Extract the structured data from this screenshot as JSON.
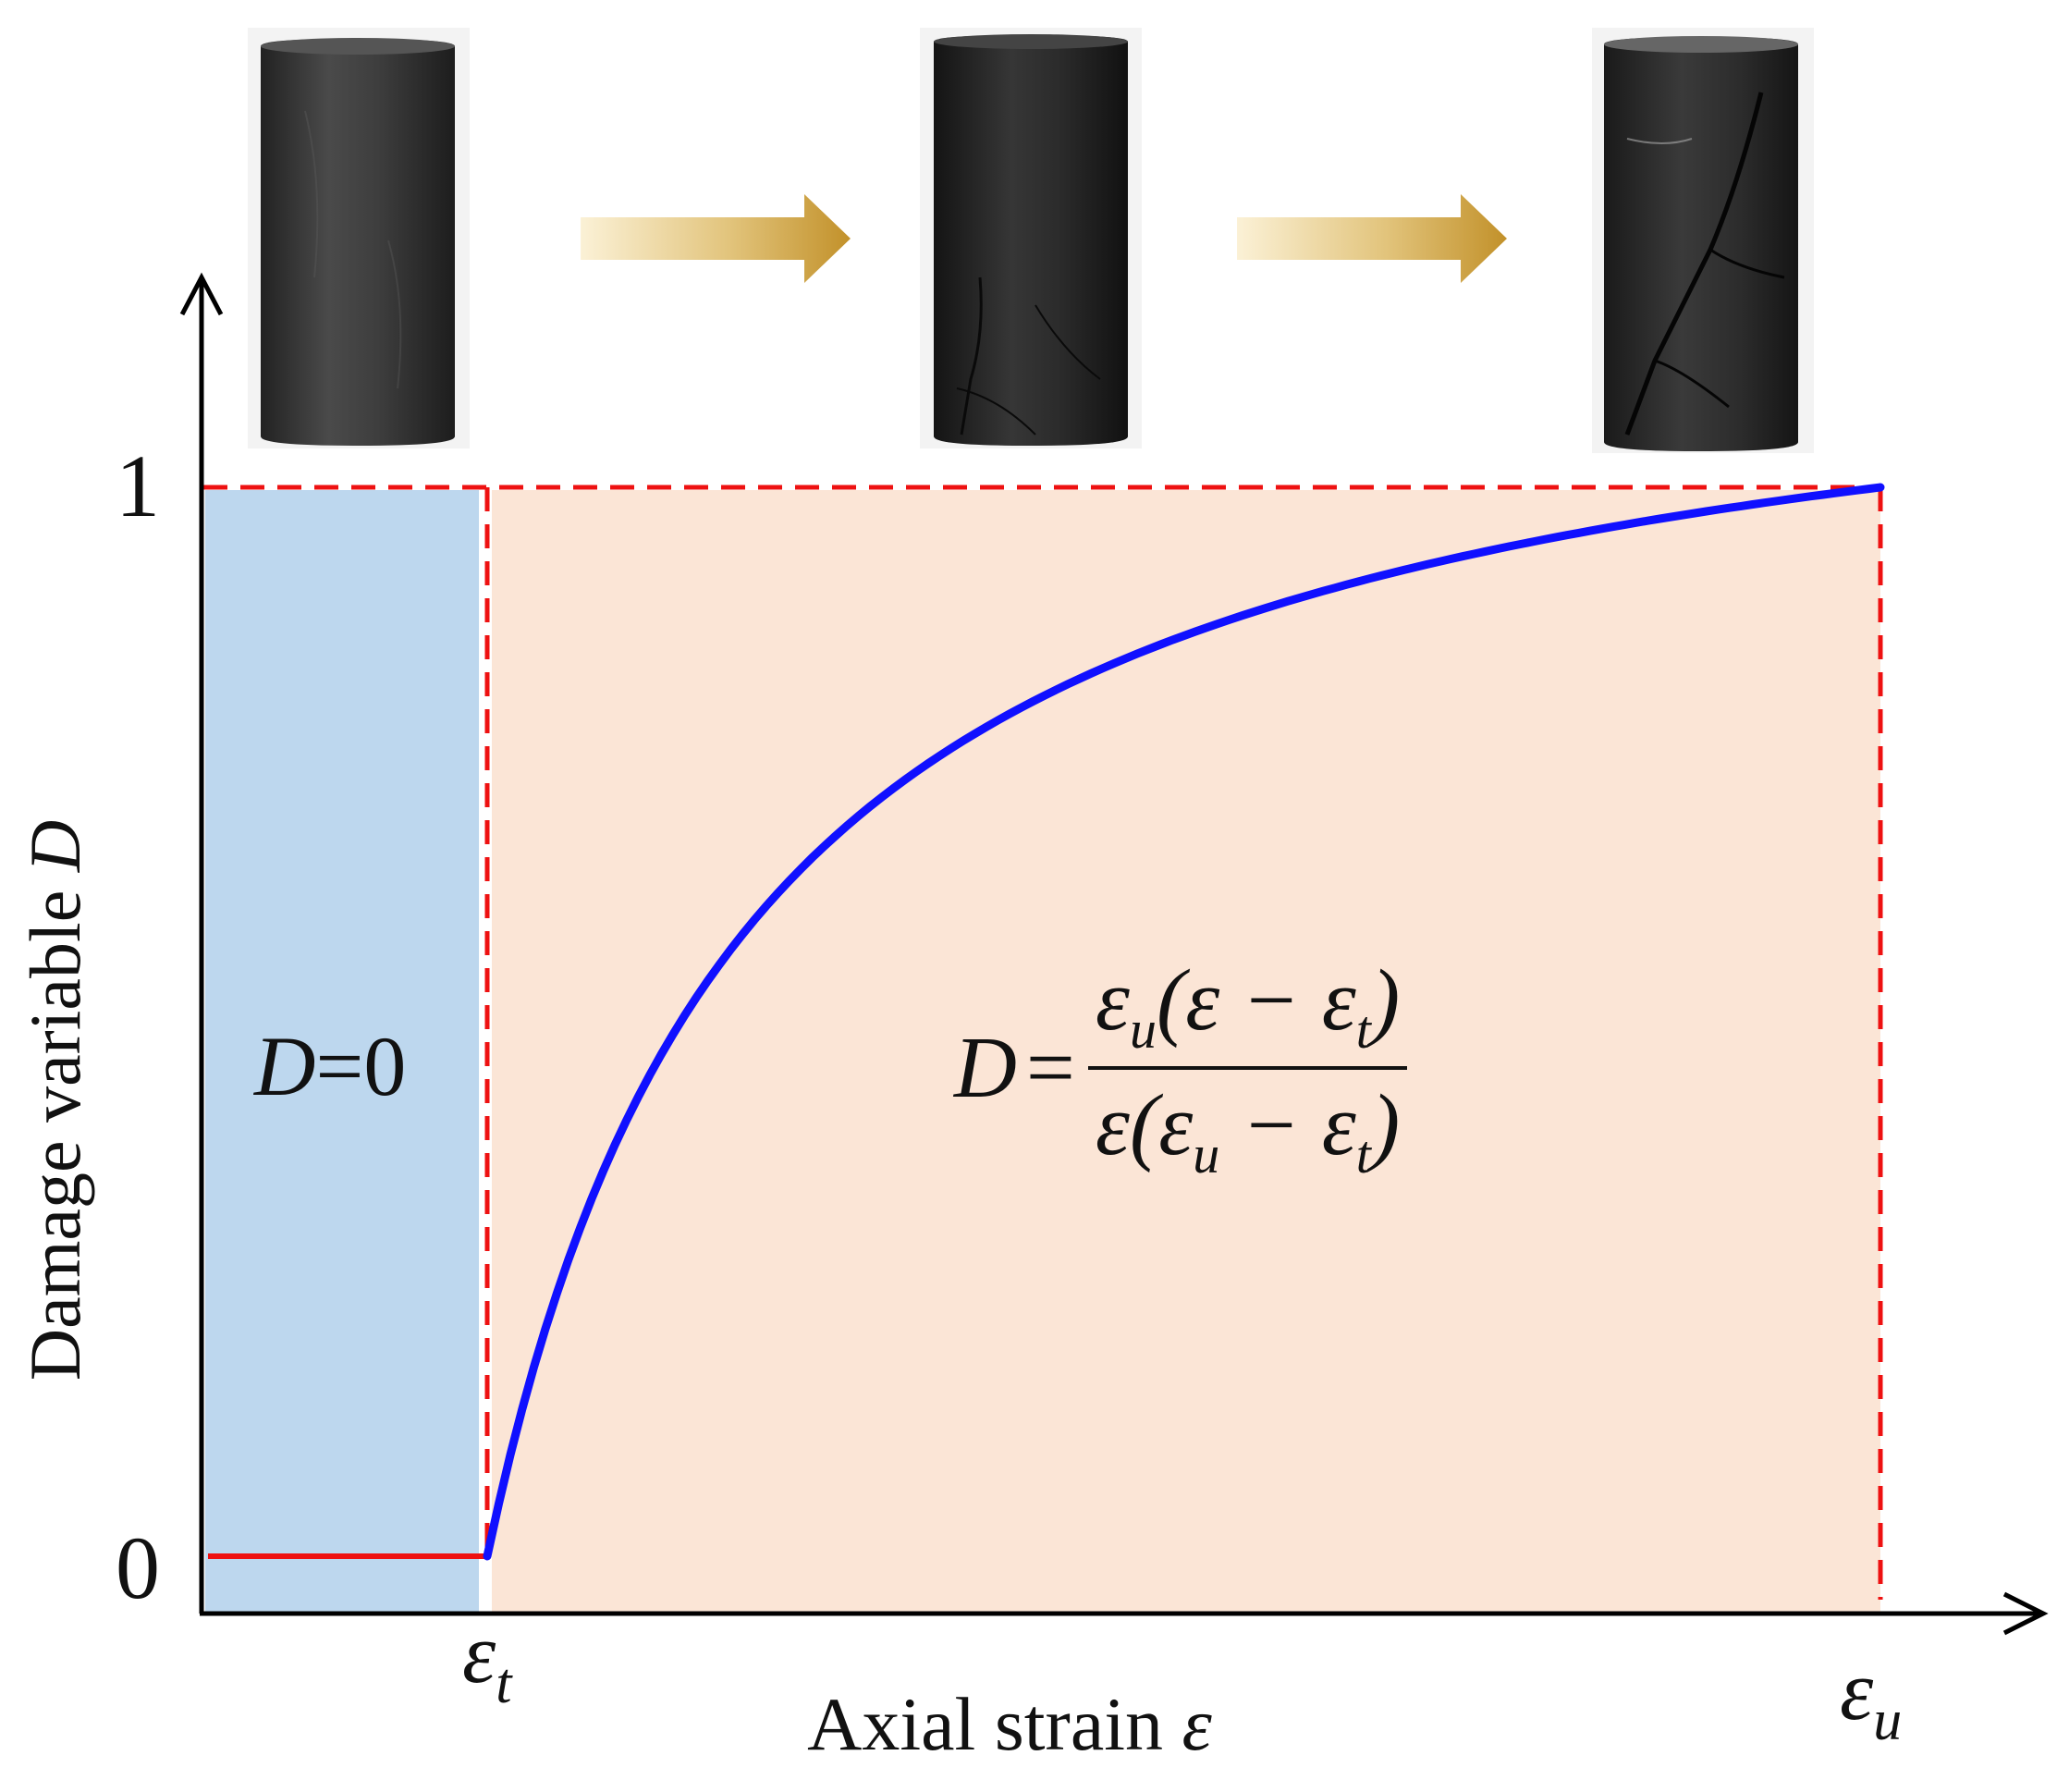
{
  "y_axis": {
    "label": "Damage variable",
    "label_symbol": "D",
    "ticks": [
      "1",
      "0"
    ]
  },
  "x_axis": {
    "label": "Axial strain",
    "label_symbol": "ε",
    "tick_left": {
      "base": "ε",
      "sub": "t"
    },
    "tick_right": {
      "base": "ε",
      "sub": "u"
    }
  },
  "region_left": {
    "text_sym": "D",
    "text_rest": "=0",
    "color": "#bdd7ee"
  },
  "region_right": {
    "color": "#fbe5d6"
  },
  "formula": {
    "lhs": "D",
    "eq": "=",
    "num": {
      "a": "ε",
      "a_sub": "u",
      "b": "(ε − ε",
      "b_sub": "t",
      "c": ")"
    },
    "den": {
      "a": "ε(ε",
      "a_sub": "u",
      "b": " − ε",
      "b_sub": "t",
      "c": ")"
    }
  },
  "colors": {
    "curve": "#1010ff",
    "zero_line": "#ee1111",
    "boundary": "#ee1111",
    "arrow": "#c89a2e",
    "axis": "#000000"
  },
  "specimens": [
    {
      "stage": "intact"
    },
    {
      "stage": "cracking"
    },
    {
      "stage": "failure"
    }
  ]
}
